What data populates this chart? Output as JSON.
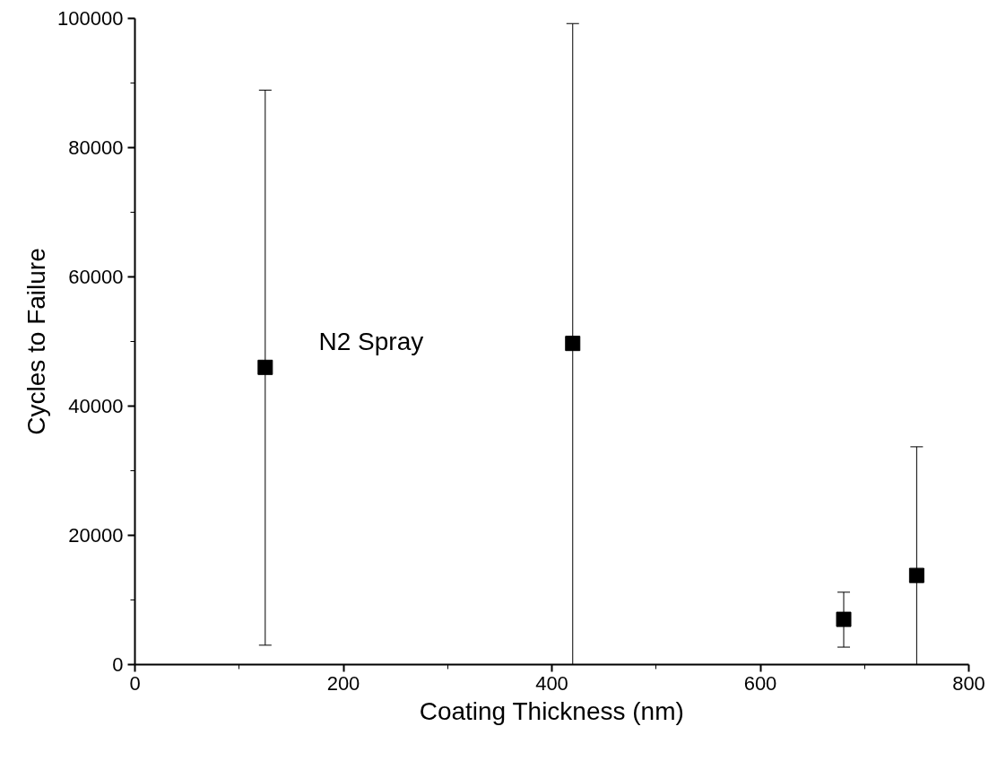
{
  "chart_data": {
    "type": "scatter",
    "xlabel": "Coating Thickness (nm)",
    "ylabel": "Cycles to Failure",
    "annotations": [
      "N2 Spray"
    ],
    "x": [
      125,
      420,
      680,
      750
    ],
    "values": [
      46000,
      49700,
      7000,
      13800
    ],
    "errors": [
      [
        3000,
        88900
      ],
      [
        0,
        99200
      ],
      [
        2700,
        11200
      ],
      [
        0,
        33700
      ]
    ],
    "color": "#000000",
    "marker": "square",
    "xlim": [
      0,
      800
    ],
    "xticks": [
      0,
      200,
      400,
      600,
      800
    ],
    "ylim": [
      0,
      100000
    ],
    "yticks": [
      0,
      20000,
      40000,
      60000,
      80000,
      100000
    ],
    "grid": false
  }
}
